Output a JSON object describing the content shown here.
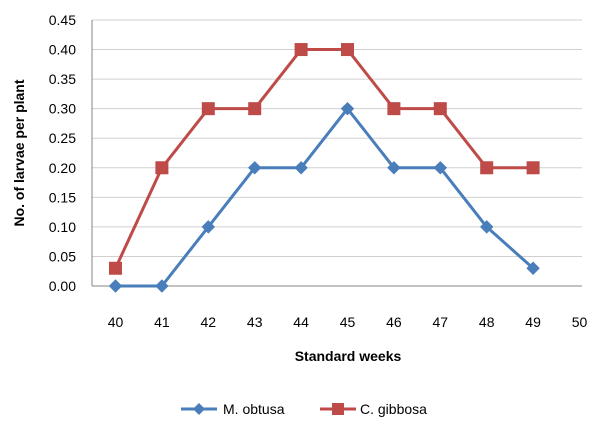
{
  "chart_data": {
    "type": "line",
    "title": "",
    "xlabel": "Standard weeks",
    "ylabel": "No. of larvae per plant",
    "x": [
      40,
      41,
      42,
      43,
      44,
      45,
      46,
      47,
      48,
      49
    ],
    "x_ticks": [
      "40",
      "41",
      "42",
      "43",
      "44",
      "45",
      "46",
      "47",
      "48",
      "49",
      "50"
    ],
    "y_ticks": [
      "0.00",
      "0.05",
      "0.10",
      "0.15",
      "0.20",
      "0.25",
      "0.30",
      "0.35",
      "0.40",
      "0.45"
    ],
    "ylim": [
      0,
      0.45
    ],
    "xlim": [
      40,
      50
    ],
    "grid": "horizontal",
    "legend_position": "bottom",
    "series": [
      {
        "name": "M. obtusa",
        "color": "#4a7ebb",
        "marker": "diamond",
        "values": [
          0.0,
          0.0,
          0.1,
          0.2,
          0.2,
          0.3,
          0.2,
          0.2,
          0.1,
          0.03
        ]
      },
      {
        "name": "C. gibbosa",
        "color": "#be4b48",
        "marker": "square",
        "values": [
          0.03,
          0.2,
          0.3,
          0.3,
          0.4,
          0.4,
          0.3,
          0.3,
          0.2,
          0.2
        ]
      }
    ]
  }
}
